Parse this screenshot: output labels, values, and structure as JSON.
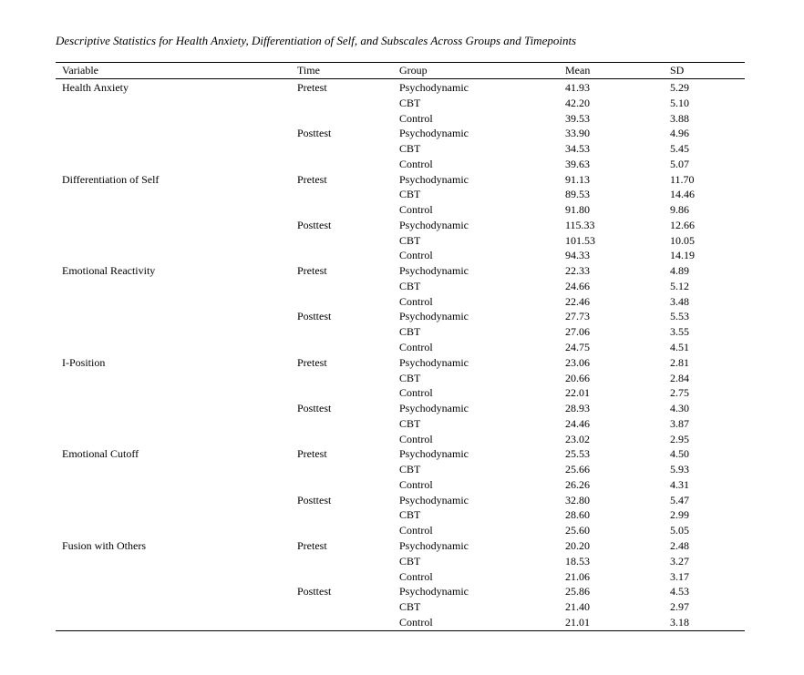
{
  "title": "Descriptive Statistics for Health Anxiety, Differentiation of Self, and Subscales Across Groups and Timepoints",
  "headers": {
    "variable": "Variable",
    "time": "Time",
    "group": "Group",
    "mean": "Mean",
    "sd": "SD"
  },
  "rows": [
    {
      "variable": "Health Anxiety",
      "time": "Pretest",
      "group": "Psychodynamic",
      "mean": "41.93",
      "sd": "5.29"
    },
    {
      "variable": "",
      "time": "",
      "group": "CBT",
      "mean": "42.20",
      "sd": "5.10"
    },
    {
      "variable": "",
      "time": "",
      "group": "Control",
      "mean": "39.53",
      "sd": "3.88"
    },
    {
      "variable": "",
      "time": "Posttest",
      "group": "Psychodynamic",
      "mean": "33.90",
      "sd": "4.96"
    },
    {
      "variable": "",
      "time": "",
      "group": "CBT",
      "mean": "34.53",
      "sd": "5.45"
    },
    {
      "variable": "",
      "time": "",
      "group": "Control",
      "mean": "39.63",
      "sd": "5.07"
    },
    {
      "variable": "Differentiation of Self",
      "time": "Pretest",
      "group": "Psychodynamic",
      "mean": "91.13",
      "sd": "11.70"
    },
    {
      "variable": "",
      "time": "",
      "group": "CBT",
      "mean": "89.53",
      "sd": "14.46"
    },
    {
      "variable": "",
      "time": "",
      "group": "Control",
      "mean": "91.80",
      "sd": "9.86"
    },
    {
      "variable": "",
      "time": "Posttest",
      "group": "Psychodynamic",
      "mean": "115.33",
      "sd": "12.66"
    },
    {
      "variable": "",
      "time": "",
      "group": "CBT",
      "mean": "101.53",
      "sd": "10.05"
    },
    {
      "variable": "",
      "time": "",
      "group": "Control",
      "mean": "94.33",
      "sd": "14.19"
    },
    {
      "variable": "Emotional Reactivity",
      "time": "Pretest",
      "group": "Psychodynamic",
      "mean": "22.33",
      "sd": "4.89"
    },
    {
      "variable": "",
      "time": "",
      "group": "CBT",
      "mean": "24.66",
      "sd": "5.12"
    },
    {
      "variable": "",
      "time": "",
      "group": "Control",
      "mean": "22.46",
      "sd": "3.48"
    },
    {
      "variable": "",
      "time": "Posttest",
      "group": "Psychodynamic",
      "mean": "27.73",
      "sd": "5.53"
    },
    {
      "variable": "",
      "time": "",
      "group": "CBT",
      "mean": "27.06",
      "sd": "3.55"
    },
    {
      "variable": "",
      "time": "",
      "group": "Control",
      "mean": "24.75",
      "sd": "4.51"
    },
    {
      "variable": "I-Position",
      "time": "Pretest",
      "group": "Psychodynamic",
      "mean": "23.06",
      "sd": "2.81"
    },
    {
      "variable": "",
      "time": "",
      "group": "CBT",
      "mean": "20.66",
      "sd": "2.84"
    },
    {
      "variable": "",
      "time": "",
      "group": "Control",
      "mean": "22.01",
      "sd": "2.75"
    },
    {
      "variable": "",
      "time": "Posttest",
      "group": "Psychodynamic",
      "mean": "28.93",
      "sd": "4.30"
    },
    {
      "variable": "",
      "time": "",
      "group": "CBT",
      "mean": "24.46",
      "sd": "3.87"
    },
    {
      "variable": "",
      "time": "",
      "group": "Control",
      "mean": "23.02",
      "sd": "2.95"
    },
    {
      "variable": "Emotional Cutoff",
      "time": "Pretest",
      "group": "Psychodynamic",
      "mean": "25.53",
      "sd": "4.50"
    },
    {
      "variable": "",
      "time": "",
      "group": "CBT",
      "mean": "25.66",
      "sd": "5.93"
    },
    {
      "variable": "",
      "time": "",
      "group": "Control",
      "mean": "26.26",
      "sd": "4.31"
    },
    {
      "variable": "",
      "time": "Posttest",
      "group": "Psychodynamic",
      "mean": "32.80",
      "sd": "5.47"
    },
    {
      "variable": "",
      "time": "",
      "group": "CBT",
      "mean": "28.60",
      "sd": "2.99"
    },
    {
      "variable": "",
      "time": "",
      "group": "Control",
      "mean": "25.60",
      "sd": "5.05"
    },
    {
      "variable": "Fusion with Others",
      "time": "Pretest",
      "group": "Psychodynamic",
      "mean": "20.20",
      "sd": "2.48"
    },
    {
      "variable": "",
      "time": "",
      "group": "CBT",
      "mean": "18.53",
      "sd": "3.27"
    },
    {
      "variable": "",
      "time": "",
      "group": "Control",
      "mean": "21.06",
      "sd": "3.17"
    },
    {
      "variable": "",
      "time": "Posttest",
      "group": "Psychodynamic",
      "mean": "25.86",
      "sd": "4.53"
    },
    {
      "variable": "",
      "time": "",
      "group": "CBT",
      "mean": "21.40",
      "sd": "2.97"
    },
    {
      "variable": "",
      "time": "",
      "group": "Control",
      "mean": "21.01",
      "sd": "3.18"
    }
  ]
}
